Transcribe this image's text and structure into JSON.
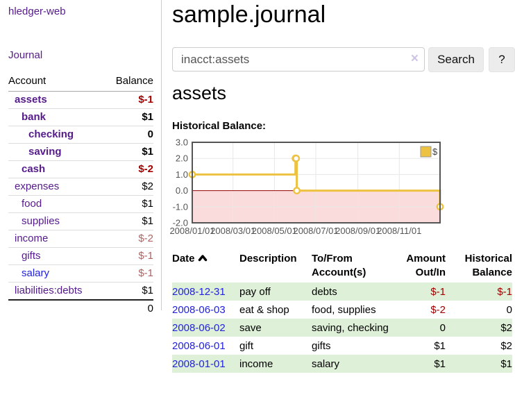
{
  "colors": {
    "link_purple": "#551a8b",
    "link_blue": "#2222dd",
    "negative_strong": "#a40000",
    "negative_muted": "#ad6464",
    "row_stripe_green": "#dff0d8",
    "chart_line": "#edc240",
    "chart_negative_fill": "#fbdcdc",
    "chart_zero_line": "#900000",
    "chart_border": "#545454",
    "chart_grid": "#e7e7e7"
  },
  "sidebar": {
    "app_title": "hledger-web",
    "nav_journal": "Journal",
    "table": {
      "account_header": "Account",
      "balance_header": "Balance",
      "rows": [
        {
          "account": "assets",
          "depth": 1,
          "bold": true,
          "balance": "$-1",
          "neg": "strong"
        },
        {
          "account": "bank",
          "depth": 2,
          "bold": true,
          "balance": "$1",
          "neg": "none"
        },
        {
          "account": "checking",
          "depth": 3,
          "bold": true,
          "balance": "0",
          "neg": "none"
        },
        {
          "account": "saving",
          "depth": 3,
          "bold": true,
          "balance": "$1",
          "neg": "none"
        },
        {
          "account": "cash",
          "depth": 2,
          "bold": true,
          "balance": "$-2",
          "neg": "strong"
        },
        {
          "account": "expenses",
          "depth": 1,
          "bold": false,
          "balance": "$2",
          "neg": "none"
        },
        {
          "account": "food",
          "depth": 2,
          "bold": false,
          "balance": "$1",
          "neg": "none"
        },
        {
          "account": "supplies",
          "depth": 2,
          "bold": false,
          "balance": "$1",
          "neg": "none"
        },
        {
          "account": "income",
          "depth": 1,
          "bold": false,
          "balance": "$-2",
          "neg": "muted"
        },
        {
          "account": "gifts",
          "depth": 2,
          "bold": false,
          "balance": "$-1",
          "neg": "muted"
        },
        {
          "account": "salary",
          "depth": 2,
          "bold": false,
          "balance": "$-1",
          "neg": "muted",
          "link_color": "blue"
        },
        {
          "account": "liabilities:debts",
          "depth": 1,
          "bold": false,
          "balance": "$1",
          "neg": "none"
        }
      ],
      "total": "0"
    }
  },
  "main": {
    "page_title": "sample.journal",
    "search": {
      "value": "inacct:assets",
      "clear_label": "×",
      "search_button": "Search",
      "help_button": "?"
    },
    "section_heading": "assets",
    "chart_title": "Historical Balance:"
  },
  "chart_data": {
    "type": "line",
    "step": true,
    "title": "Historical Balance",
    "series": [
      {
        "name": "$",
        "color": "#edc240",
        "points": [
          {
            "date": "2008-01-01",
            "value": 1
          },
          {
            "date": "2008-06-01",
            "value": 2
          },
          {
            "date": "2008-06-02",
            "value": 2
          },
          {
            "date": "2008-06-03",
            "value": 0
          },
          {
            "date": "2008-12-31",
            "value": -1
          }
        ]
      }
    ],
    "x_ticks": [
      "2008/01/01",
      "2008/03/01",
      "2008/05/01",
      "2008/07/01",
      "2008/09/01",
      "2008/11/01"
    ],
    "y_ticks": [
      "3.0",
      "2.0",
      "1.0",
      "0.0",
      "-1.0",
      "-2.0"
    ],
    "y_range": [
      -2,
      3
    ],
    "x_range": [
      "2008-01-01",
      "2008-12-31"
    ],
    "legend": {
      "label": "$",
      "position": "top-right"
    },
    "grid": true,
    "negative_region_below": 0
  },
  "register": {
    "headers": {
      "date": "Date",
      "description": "Description",
      "accounts_line1": "To/From",
      "accounts_line2": "Account(s)",
      "amount_line1": "Amount",
      "amount_line2": "Out/In",
      "balance_line1": "Historical",
      "balance_line2": "Balance"
    },
    "rows": [
      {
        "date": "2008-12-31",
        "description": "pay off",
        "accounts": "debts",
        "amount": "$-1",
        "amount_neg": true,
        "balance": "$-1",
        "balance_neg": true
      },
      {
        "date": "2008-06-03",
        "description": "eat & shop",
        "accounts": "food, supplies",
        "amount": "$-2",
        "amount_neg": true,
        "balance": "0",
        "balance_neg": false
      },
      {
        "date": "2008-06-02",
        "description": "save",
        "accounts": "saving, checking",
        "amount": "0",
        "amount_neg": false,
        "balance": "$2",
        "balance_neg": false
      },
      {
        "date": "2008-06-01",
        "description": "gift",
        "accounts": "gifts",
        "amount": "$1",
        "amount_neg": false,
        "balance": "$2",
        "balance_neg": false
      },
      {
        "date": "2008-01-01",
        "description": "income",
        "accounts": "salary",
        "amount": "$1",
        "amount_neg": false,
        "balance": "$1",
        "balance_neg": false
      }
    ]
  }
}
